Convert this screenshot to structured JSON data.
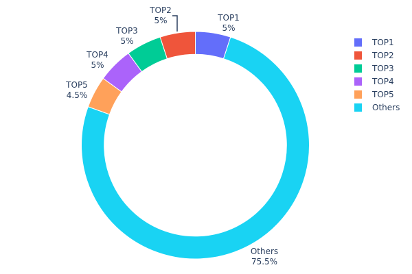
{
  "chart_data": {
    "type": "pie",
    "hole": 0.8,
    "direction": "clockwise",
    "rotation_start_deg": 0,
    "labels": [
      "TOP1",
      "Others",
      "TOP5",
      "TOP4",
      "TOP3",
      "TOP2"
    ],
    "values": [
      5,
      75.5,
      4.5,
      5,
      5,
      5
    ],
    "slices": [
      {
        "label": "TOP1",
        "value": 5,
        "text": "5%",
        "color": "#636efa"
      },
      {
        "label": "Others",
        "value": 75.5,
        "text": "75.5%",
        "color": "#19d3f3"
      },
      {
        "label": "TOP5",
        "value": 4.5,
        "text": "4.5%",
        "color": "#ffa15a"
      },
      {
        "label": "TOP4",
        "value": 5,
        "text": "5%",
        "color": "#ab63fa"
      },
      {
        "label": "TOP3",
        "value": 5,
        "text": "5%",
        "color": "#00cc96"
      },
      {
        "label": "TOP2",
        "value": 5,
        "text": "5%",
        "color": "#ef553b"
      }
    ],
    "legend": {
      "position": "right",
      "entries": [
        {
          "label": "TOP1",
          "color": "#636efa"
        },
        {
          "label": "TOP2",
          "color": "#ef553b"
        },
        {
          "label": "TOP3",
          "color": "#00cc96"
        },
        {
          "label": "TOP4",
          "color": "#ab63fa"
        },
        {
          "label": "TOP5",
          "color": "#ffa15a"
        },
        {
          "label": "Others",
          "color": "#19d3f3"
        }
      ]
    },
    "title": "",
    "textinfo": "label+percent",
    "textposition": "outside"
  }
}
